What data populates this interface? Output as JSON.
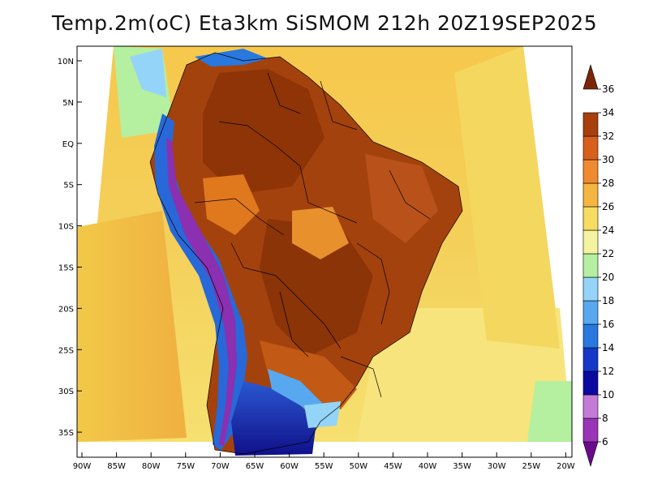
{
  "title": "Temp.2m(oC) Eta3km SiSMOM 212h 20Z19SEP2025",
  "lat_labels": [
    "10N",
    "5N",
    "EQ",
    "5S",
    "10S",
    "15S",
    "20S",
    "25S",
    "30S",
    "35S"
  ],
  "lon_labels": [
    "90W",
    "85W",
    "80W",
    "75W",
    "70W",
    "65W",
    "60W",
    "55W",
    "50W",
    "45W",
    "40W",
    "35W",
    "30W",
    "25W",
    "20W"
  ],
  "colorbar": {
    "levels": [
      "6",
      "8",
      "10",
      "12",
      "14",
      "16",
      "18",
      "20",
      "22",
      "24",
      "26",
      "28",
      "30",
      "32",
      "34",
      "36"
    ],
    "colors": [
      "#6a0a8c",
      "#9a35b8",
      "#c57ad8",
      "#0a0aa0",
      "#1438c8",
      "#2878e0",
      "#58a8f0",
      "#94d4f8",
      "#b4f0a0",
      "#f4f4a0",
      "#f6dc60",
      "#f6b441",
      "#f08a30",
      "#d8601c",
      "#a8400e",
      "#7a2608"
    ]
  },
  "colors": {
    "ocean_north": "#f4c24a",
    "land_hot": "#9a3c10",
    "coast_pacific": "#f6d25a"
  }
}
